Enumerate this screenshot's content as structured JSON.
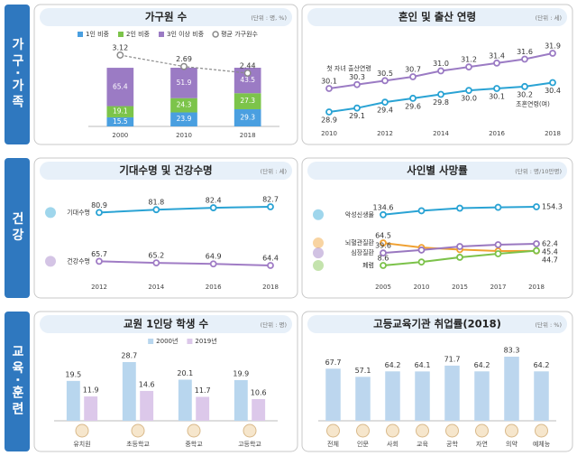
{
  "sections": [
    "가구·가족",
    "건강",
    "교육·훈련"
  ],
  "chart_data": [
    {
      "type": "bar",
      "title": "가구원 수",
      "unit": "(단위 : 명, %)",
      "stacked": true,
      "categories": [
        2000,
        2010,
        2018
      ],
      "series": [
        {
          "name": "1인 비중",
          "color": "#4a9fe0",
          "values": [
            15.5,
            23.9,
            29.3
          ]
        },
        {
          "name": "2인 비중",
          "color": "#7cc44a",
          "values": [
            19.1,
            24.3,
            27.3
          ]
        },
        {
          "name": "3인 이상 비중",
          "color": "#9b7bc4",
          "values": [
            65.4,
            51.9,
            43.5
          ]
        },
        {
          "name": "평균 가구원수",
          "type": "line",
          "color": "#8a8a8a",
          "values": [
            3.12,
            2.69,
            2.44
          ]
        }
      ]
    },
    {
      "type": "line",
      "title": "혼인 및 출산 연령",
      "unit": "(단위 : 세)",
      "legend": "ends",
      "x": [
        2010,
        2011,
        2012,
        2013,
        2014,
        2015,
        2016,
        2017,
        2018
      ],
      "xlim": [
        2010,
        2018
      ],
      "xticks": [
        2010,
        2012,
        2014,
        2016,
        2018
      ],
      "series": [
        {
          "name": "첫 자녀 출산연령",
          "color": "#9b7bc4",
          "values": [
            30.1,
            30.3,
            30.5,
            30.7,
            31.0,
            31.2,
            31.4,
            31.6,
            31.9
          ],
          "value_labels": [
            "30.1",
            "30.3",
            "30.5",
            "30.7",
            "31.0",
            "31.2",
            "31.4",
            "31.6",
            "31.9"
          ]
        },
        {
          "name": "초혼연령(여)",
          "color": "#2aa3d4",
          "values": [
            28.9,
            29.1,
            29.4,
            29.6,
            29.8,
            30.0,
            30.1,
            30.2,
            30.4
          ],
          "value_labels": [
            "28.9",
            "29.1",
            "29.4",
            "29.6",
            "29.8",
            "30.0",
            "30.1",
            "30.2",
            "30.4"
          ]
        }
      ]
    },
    {
      "type": "line",
      "title": "기대수명 및 건강수명",
      "unit": "(단위 : 세)",
      "legend": "left",
      "categories": [
        2012,
        2014,
        2016,
        2018
      ],
      "series": [
        {
          "name": "기대수명",
          "color": "#2aa3d4",
          "values": [
            80.9,
            81.8,
            82.4,
            82.7
          ]
        },
        {
          "name": "건강수명",
          "color": "#a07cc5",
          "values": [
            65.7,
            65.2,
            64.9,
            64.4
          ]
        }
      ]
    },
    {
      "type": "line",
      "title": "사인별 사망률",
      "unit": "(단위 : 명/10만명)",
      "legend": "left",
      "categories": [
        2005,
        2010,
        2015,
        2017,
        2018
      ],
      "series": [
        {
          "name": "악성신생물",
          "color": "#2aa3d4",
          "values": [
            134.6,
            144.4,
            150.8,
            153.0,
            154.3
          ],
          "value_labels": [
            "134.6",
            null,
            null,
            null,
            "154.3"
          ]
        },
        {
          "name": "뇌혈관질환",
          "color": "#f0a030",
          "values": [
            64.5,
            53.2,
            48.0,
            44.4,
            44.7
          ],
          "value_labels": [
            "64.5",
            null,
            null,
            null,
            "44.7"
          ]
        },
        {
          "name": "심장질환",
          "color": "#9a78c0",
          "values": [
            39.6,
            46.9,
            55.6,
            60.2,
            62.4
          ],
          "value_labels": [
            "39.6",
            null,
            null,
            null,
            "62.4"
          ]
        },
        {
          "name": "폐렴",
          "color": "#7cc24a",
          "values": [
            8.6,
            17.2,
            28.9,
            37.8,
            45.4
          ],
          "value_labels": [
            "8.6",
            null,
            null,
            null,
            "45.4"
          ]
        }
      ]
    },
    {
      "type": "bar",
      "title": "교원 1인당 학생 수",
      "unit": "(단위 : 명)",
      "categories": [
        "유치원",
        "초등학교",
        "중학교",
        "고등학교"
      ],
      "series": [
        {
          "name": "2000년",
          "color": "#b8d6ee",
          "values": [
            19.5,
            28.7,
            20.1,
            19.9
          ]
        },
        {
          "name": "2019년",
          "color": "#dcc8ea",
          "values": [
            11.9,
            14.6,
            11.7,
            10.6
          ]
        }
      ]
    },
    {
      "type": "bar",
      "title": "고등교육기관 취업률(2018)",
      "unit": "(단위 : %)",
      "categories": [
        "전체",
        "인문",
        "사회",
        "교육",
        "공학",
        "자연",
        "의약",
        "예체능"
      ],
      "values": [
        67.7,
        57.1,
        64.2,
        64.1,
        71.7,
        64.2,
        83.3,
        64.2
      ],
      "color": "#bcd6ee"
    }
  ]
}
